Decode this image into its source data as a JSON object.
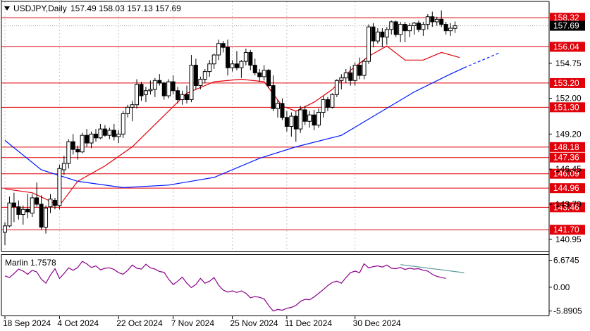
{
  "header": {
    "symbol": "USDJPY,Daily",
    "ohlc": "157.49 158.03 157.13 157.69"
  },
  "colors": {
    "bull": "#ffffff",
    "bear": "#000000",
    "ma_short": "#e0000a",
    "ma_long": "#0019ff",
    "level_line": "#e0000a",
    "level_label_bg": "#e0000a",
    "current_label_bg": "#000000",
    "osc_line": "#8a008a",
    "osc_divergence": "#5f9ea0",
    "grid": "#c8c8c8"
  },
  "chart_data": [
    {
      "type": "candlestick",
      "title": "USDJPY,Daily",
      "ylim": [
        140.0,
        159.6
      ],
      "y_ticks": [
        "154.75",
        "152.00",
        "149.20",
        "146.45",
        "143.70",
        "140.95"
      ],
      "x_ticks": [
        "18 Sep 2024",
        "4 Oct 2024",
        "22 Oct 2024",
        "7 Nov 2024",
        "25 Nov 2024",
        "11 Dec 2024",
        "30 Dec 2024"
      ],
      "current_price": "157.69",
      "levels": [
        158.32,
        156.04,
        153.2,
        151.3,
        148.18,
        147.36,
        146.09,
        144.96,
        143.46,
        141.7
      ],
      "level_labels": [
        "158.32",
        "156.04",
        "153.20",
        "151.30",
        "148.18",
        "147.36",
        "146.09",
        "144.96",
        "143.46",
        "141.70"
      ],
      "candles": [
        [
          141.5,
          142.3,
          140.5,
          142.0
        ],
        [
          142.0,
          144.3,
          141.9,
          143.8
        ],
        [
          143.8,
          144.6,
          142.3,
          143.5
        ],
        [
          143.5,
          144.0,
          142.5,
          142.9
        ],
        [
          142.9,
          143.6,
          142.1,
          143.3
        ],
        [
          143.3,
          144.5,
          142.6,
          143.1
        ],
        [
          143.0,
          144.5,
          142.7,
          144.2
        ],
        [
          144.2,
          145.4,
          143.5,
          143.7
        ],
        [
          143.7,
          144.4,
          141.7,
          141.9
        ],
        [
          141.9,
          143.6,
          141.4,
          143.4
        ],
        [
          143.5,
          144.5,
          143.0,
          144.1
        ],
        [
          144.0,
          144.2,
          143.3,
          143.6
        ],
        [
          143.6,
          146.8,
          143.3,
          146.5
        ],
        [
          146.4,
          147.5,
          146.0,
          146.9
        ],
        [
          146.9,
          148.8,
          146.5,
          148.6
        ],
        [
          148.6,
          149.2,
          147.6,
          148.0
        ],
        [
          148.0,
          148.3,
          147.2,
          147.8
        ],
        [
          147.8,
          149.3,
          147.7,
          149.1
        ],
        [
          149.1,
          149.6,
          148.2,
          148.5
        ],
        [
          148.5,
          149.4,
          148.1,
          149.2
        ],
        [
          149.2,
          149.6,
          148.6,
          148.9
        ],
        [
          148.9,
          150.0,
          148.8,
          149.6
        ],
        [
          149.6,
          149.9,
          149.0,
          149.1
        ],
        [
          149.1,
          149.7,
          148.8,
          149.5
        ],
        [
          149.5,
          150.0,
          148.7,
          149.0
        ],
        [
          149.0,
          149.5,
          148.5,
          149.2
        ],
        [
          149.2,
          151.0,
          148.9,
          150.8
        ],
        [
          150.8,
          151.5,
          150.5,
          151.3
        ],
        [
          151.3,
          151.8,
          150.2,
          151.5
        ],
        [
          151.5,
          153.5,
          151.2,
          153.1
        ],
        [
          153.1,
          153.3,
          151.8,
          152.2
        ],
        [
          152.3,
          152.9,
          151.7,
          152.6
        ],
        [
          152.6,
          153.4,
          152.3,
          152.7
        ],
        [
          152.7,
          153.6,
          152.1,
          153.4
        ],
        [
          153.4,
          153.9,
          153.0,
          153.2
        ],
        [
          153.2,
          153.3,
          151.9,
          152.2
        ],
        [
          152.2,
          153.5,
          152.0,
          153.3
        ],
        [
          153.3,
          153.8,
          152.3,
          152.6
        ],
        [
          152.6,
          152.9,
          151.6,
          151.9
        ],
        [
          151.9,
          152.6,
          151.5,
          152.3
        ],
        [
          152.3,
          153.0,
          151.6,
          151.9
        ],
        [
          151.9,
          155.4,
          151.7,
          154.6
        ],
        [
          154.6,
          155.1,
          152.7,
          153.0
        ],
        [
          153.0,
          153.7,
          152.7,
          153.5
        ],
        [
          153.5,
          154.3,
          153.2,
          154.1
        ],
        [
          154.1,
          155.0,
          153.7,
          154.7
        ],
        [
          154.7,
          155.5,
          154.3,
          155.4
        ],
        [
          155.4,
          156.6,
          155.0,
          156.3
        ],
        [
          156.3,
          156.5,
          155.6,
          156.0
        ],
        [
          156.0,
          156.6,
          153.8,
          154.4
        ],
        [
          154.4,
          155.0,
          154.1,
          154.7
        ],
        [
          154.7,
          155.7,
          154.2,
          154.4
        ],
        [
          154.4,
          155.0,
          153.6,
          154.9
        ],
        [
          154.9,
          155.9,
          154.6,
          155.6
        ],
        [
          155.6,
          155.8,
          154.2,
          154.6
        ],
        [
          154.6,
          155.1,
          153.8,
          154.0
        ],
        [
          154.0,
          154.3,
          153.3,
          153.7
        ],
        [
          153.7,
          154.6,
          153.4,
          154.2
        ],
        [
          154.2,
          154.3,
          152.8,
          153.0
        ],
        [
          153.0,
          153.8,
          151.0,
          151.2
        ],
        [
          151.2,
          151.9,
          150.5,
          151.6
        ],
        [
          151.6,
          152.0,
          150.3,
          150.5
        ],
        [
          150.5,
          151.0,
          149.4,
          149.8
        ],
        [
          149.8,
          150.9,
          149.0,
          150.6
        ],
        [
          150.6,
          151.0,
          148.6,
          149.6
        ],
        [
          149.6,
          151.4,
          149.3,
          151.1
        ],
        [
          151.1,
          151.4,
          149.9,
          150.2
        ],
        [
          150.2,
          151.0,
          149.7,
          150.7
        ],
        [
          150.7,
          151.1,
          149.5,
          149.9
        ],
        [
          149.9,
          151.2,
          149.7,
          150.9
        ],
        [
          150.9,
          152.2,
          150.5,
          151.9
        ],
        [
          151.9,
          152.1,
          151.0,
          151.3
        ],
        [
          151.3,
          152.4,
          151.2,
          152.3
        ],
        [
          152.3,
          153.5,
          152.1,
          153.4
        ],
        [
          153.4,
          153.9,
          152.7,
          153.6
        ],
        [
          153.6,
          154.3,
          153.2,
          154.0
        ],
        [
          154.0,
          154.5,
          153.0,
          153.4
        ],
        [
          153.4,
          154.8,
          153.0,
          154.6
        ],
        [
          154.6,
          155.2,
          153.5,
          153.8
        ],
        [
          153.8,
          155.1,
          153.5,
          154.9
        ],
        [
          154.9,
          157.8,
          154.7,
          157.6
        ],
        [
          157.6,
          157.9,
          156.0,
          156.5
        ],
        [
          156.5,
          157.5,
          156.3,
          157.2
        ],
        [
          157.2,
          157.5,
          156.0,
          156.8
        ],
        [
          156.8,
          157.6,
          156.2,
          157.4
        ],
        [
          157.4,
          158.1,
          157.0,
          158.0
        ],
        [
          158.0,
          158.1,
          156.8,
          157.0
        ],
        [
          157.0,
          158.0,
          156.4,
          157.8
        ],
        [
          157.8,
          158.0,
          156.4,
          157.3
        ],
        [
          157.3,
          157.9,
          156.8,
          157.7
        ],
        [
          157.7,
          158.0,
          157.0,
          157.9
        ],
        [
          157.9,
          158.1,
          157.2,
          157.4
        ],
        [
          157.4,
          158.0,
          156.9,
          157.8
        ],
        [
          157.8,
          158.6,
          157.4,
          158.4
        ],
        [
          158.4,
          158.8,
          157.6,
          158.0
        ],
        [
          158.0,
          158.4,
          157.7,
          158.2
        ],
        [
          158.2,
          158.9,
          157.6,
          157.8
        ],
        [
          157.8,
          158.0,
          157.0,
          157.3
        ],
        [
          157.3,
          157.9,
          156.9,
          157.5
        ],
        [
          157.49,
          158.03,
          157.13,
          157.69
        ]
      ],
      "ma_short": [
        {
          "i": 0,
          "v": 144.9
        },
        {
          "i": 6,
          "v": 144.6
        },
        {
          "i": 12,
          "v": 143.6
        },
        {
          "i": 16,
          "v": 145.5
        },
        {
          "i": 22,
          "v": 146.7
        },
        {
          "i": 28,
          "v": 148.2
        },
        {
          "i": 34,
          "v": 150.3
        },
        {
          "i": 40,
          "v": 152.4
        },
        {
          "i": 46,
          "v": 153.3
        },
        {
          "i": 52,
          "v": 153.5
        },
        {
          "i": 57,
          "v": 153.3
        },
        {
          "i": 61,
          "v": 151.4
        },
        {
          "i": 64,
          "v": 151.0
        },
        {
          "i": 68,
          "v": 151.7
        },
        {
          "i": 72,
          "v": 152.7
        },
        {
          "i": 76,
          "v": 154.2
        },
        {
          "i": 80,
          "v": 155.3
        },
        {
          "i": 84,
          "v": 156.1
        },
        {
          "i": 88,
          "v": 155.0
        },
        {
          "i": 92,
          "v": 155.0
        },
        {
          "i": 96,
          "v": 155.6
        },
        {
          "i": 100,
          "v": 155.2
        }
      ],
      "ma_long": [
        {
          "i": 0,
          "v": 148.7
        },
        {
          "i": 8,
          "v": 146.4
        },
        {
          "i": 16,
          "v": 145.5
        },
        {
          "i": 26,
          "v": 145.0
        },
        {
          "i": 36,
          "v": 145.2
        },
        {
          "i": 46,
          "v": 145.8
        },
        {
          "i": 56,
          "v": 147.3
        },
        {
          "i": 64,
          "v": 148.2
        },
        {
          "i": 74,
          "v": 149.1
        },
        {
          "i": 82,
          "v": 150.8
        },
        {
          "i": 90,
          "v": 152.5
        },
        {
          "i": 98,
          "v": 153.9
        },
        {
          "i": 101,
          "v": 154.4
        }
      ],
      "ma_long_projection": [
        {
          "i": 101,
          "v": 154.4
        },
        {
          "i": 109,
          "v": 155.6
        }
      ]
    },
    {
      "type": "line",
      "title": "Marlin 1.7578",
      "ylim": [
        -7.0,
        8.0
      ],
      "y_ticks": [
        "6.6745",
        "0.00",
        "-5.8905"
      ],
      "series": [
        {
          "values": [
            2.8,
            2.4,
            3.4,
            4.5,
            4.0,
            3.2,
            4.2,
            3.8,
            2.0,
            1.0,
            3.0,
            4.6,
            2.2,
            3.4,
            4.8,
            4.2,
            4.9,
            6.4,
            5.8,
            4.9,
            5.3,
            4.3,
            4.7,
            4.8,
            4.4,
            3.6,
            3.2,
            4.2,
            5.5,
            4.7,
            4.5,
            5.7,
            4.8,
            4.5,
            3.9,
            3.7,
            2.0,
            0.7,
            1.5,
            2.5,
            1.0,
            -0.1,
            0.7,
            2.2,
            1.0,
            1.5,
            2.4,
            0.5,
            -0.7,
            -1.2,
            -0.9,
            -1.3,
            -0.9,
            -1.5,
            -2.6,
            -2.3,
            -2.5,
            -2.9,
            -4.5,
            -5.9,
            -5.5,
            -5.7,
            -5.2,
            -5.0,
            -4.5,
            -3.5,
            -3.0,
            -3.1,
            -2.4,
            -1.5,
            -0.6,
            0.4,
            1.2,
            1.5,
            1.0,
            2.4,
            3.6,
            4.0,
            3.6,
            5.8,
            4.8,
            5.1,
            5.3,
            5.0,
            5.5,
            4.7,
            4.6,
            4.9,
            4.4,
            4.7,
            4.5,
            4.6,
            4.2,
            4.0,
            3.2,
            2.7,
            2.4,
            2.2
          ],
          "start_index": 0
        }
      ],
      "divergence": [
        {
          "i": 87,
          "v": 5.6
        },
        {
          "i": 101,
          "v": 3.6
        }
      ]
    }
  ]
}
